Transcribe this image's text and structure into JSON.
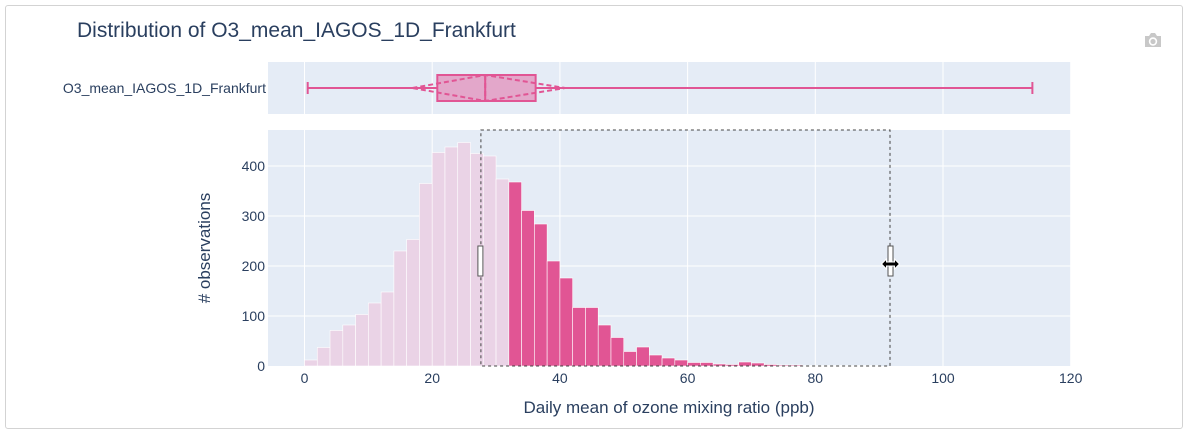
{
  "title": "Distribution of O3_mean_IAGOS_1D_Frankfurt",
  "toolbar": {
    "camera_icon": "camera-icon"
  },
  "colors": {
    "accent": "#e15594",
    "accent_faded": "#ead3e6",
    "plot_bg": "#e5ecf6",
    "grid": "#ffffff",
    "text": "#2a3f5f"
  },
  "chart_data": [
    {
      "type": "box",
      "name": "O3_mean_IAGOS_1D_Frankfurt",
      "min": 0.5,
      "q1": 20.8,
      "median": 28.3,
      "q3": 36.2,
      "max": 114,
      "mean": 28.3,
      "sd_low": 16.9,
      "sd_high": 40.8,
      "show_sd": true
    },
    {
      "type": "bar",
      "subtype": "histogram",
      "xlabel": "Daily mean of ozone mixing ratio (ppb)",
      "ylabel": "# observations",
      "xlim": [
        -5,
        120
      ],
      "ylim": [
        0,
        490
      ],
      "xticks": [
        0,
        20,
        40,
        60,
        80,
        100,
        120
      ],
      "yticks": [
        0,
        100,
        200,
        300,
        400
      ],
      "grid": true,
      "bin_width": 2,
      "bin_starts": [
        0,
        2,
        4,
        6,
        8,
        10,
        12,
        14,
        16,
        18,
        20,
        22,
        24,
        26,
        28,
        30,
        32,
        34,
        36,
        38,
        40,
        42,
        44,
        46,
        48,
        50,
        52,
        54,
        56,
        58,
        60,
        62,
        64,
        66,
        68,
        70,
        72,
        74,
        76,
        78,
        80,
        82,
        84,
        86,
        88,
        90
      ],
      "values": [
        12,
        37,
        71,
        82,
        103,
        126,
        148,
        230,
        253,
        365,
        427,
        438,
        447,
        425,
        420,
        374,
        368,
        311,
        284,
        210,
        176,
        117,
        117,
        82,
        57,
        29,
        38,
        22,
        16,
        12,
        7,
        7,
        4,
        3,
        8,
        6,
        3,
        2,
        2,
        1,
        1,
        1,
        1,
        1,
        1,
        0
      ],
      "selection_range": [
        31.7,
        91.7
      ]
    }
  ]
}
